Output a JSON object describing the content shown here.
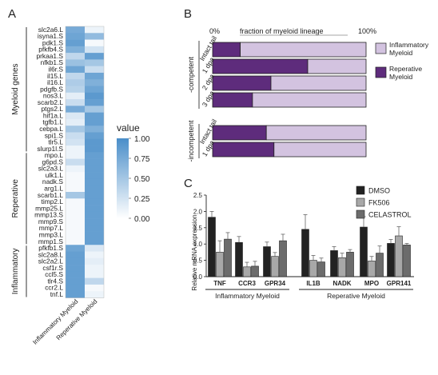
{
  "panels": {
    "a": "A",
    "b": "B",
    "c": "C"
  },
  "chart_data": [
    {
      "type": "heatmap",
      "panel": "A",
      "columns": [
        "Inflammatory Myeloid",
        "Reperative Myeloid"
      ],
      "rows": [
        "slc2a6.L",
        "isyna1.S",
        "pdk1.S",
        "pfkfb4.S",
        "prkaa1.S",
        "nfkb1.S",
        "il6r.S",
        "il15.L",
        "il16.L",
        "pdgfb.S",
        "nos3.L",
        "scarb2.L",
        "ptgs2.L",
        "hif1a.L",
        "tgfb1.L",
        "cebpa.L",
        "spi1.S",
        "tlr5.L",
        "slurp1l.S",
        "mpo.L",
        "g6pd.S",
        "slc2a3.L",
        "ulk1.L",
        "nadk.S",
        "arg1.L",
        "scarb1.L",
        "timp2.L",
        "mmp25.L",
        "mmp13.S",
        "mmp9.S",
        "mmp7.L",
        "mmp3.L",
        "mmp1.S",
        "pfkfb1.S",
        "slc2a8.L",
        "slc2a2.L",
        "csf1r.S",
        "ccl5.S",
        "tlr4.S",
        "ccr2.L",
        "tnf.L"
      ],
      "values": [
        [
          0.75,
          0.1
        ],
        [
          0.8,
          0.6
        ],
        [
          0.85,
          0.05
        ],
        [
          0.7,
          0.25
        ],
        [
          0.35,
          0.85
        ],
        [
          0.55,
          0.5
        ],
        [
          0.8,
          0.3
        ],
        [
          0.35,
          0.8
        ],
        [
          0.45,
          0.7
        ],
        [
          0.4,
          0.8
        ],
        [
          0.15,
          0.9
        ],
        [
          0.3,
          0.85
        ],
        [
          0.75,
          0.5
        ],
        [
          0.2,
          0.85
        ],
        [
          0.15,
          0.85
        ],
        [
          0.5,
          0.7
        ],
        [
          0.3,
          0.85
        ],
        [
          0.25,
          0.9
        ],
        [
          0.1,
          0.9
        ],
        [
          0.1,
          0.85
        ],
        [
          0.3,
          0.85
        ],
        [
          0.1,
          0.85
        ],
        [
          0.05,
          0.85
        ],
        [
          0.05,
          0.85
        ],
        [
          0.05,
          0.85
        ],
        [
          0.5,
          0.85
        ],
        [
          0.05,
          0.85
        ],
        [
          0.05,
          0.85
        ],
        [
          0.05,
          0.85
        ],
        [
          0.05,
          0.85
        ],
        [
          0.05,
          0.85
        ],
        [
          0.05,
          0.85
        ],
        [
          0.05,
          0.85
        ],
        [
          0.8,
          0.2
        ],
        [
          0.85,
          0.1
        ],
        [
          0.85,
          0.15
        ],
        [
          0.85,
          0.1
        ],
        [
          0.85,
          0.1
        ],
        [
          0.85,
          0.35
        ],
        [
          0.85,
          0.05
        ],
        [
          0.85,
          0.1
        ]
      ],
      "groups": [
        {
          "label": "Myeloid genes",
          "start": 0,
          "end": 18
        },
        {
          "label": "Reperative",
          "start": 19,
          "end": 32
        },
        {
          "label": "Inflammatory",
          "start": 33,
          "end": 40
        }
      ],
      "colorbar": {
        "title": "value",
        "ticks": [
          "1.00",
          "0.75",
          "0.50",
          "0.25",
          "0.00"
        ],
        "low_color": "#ffffff",
        "high_color": "#4a8ec9"
      }
    },
    {
      "type": "bar",
      "panel": "B",
      "orientation": "horizontal",
      "stacked": true,
      "title": "fraction of myeloid lineage",
      "axis_ticks": [
        "0%",
        "100%"
      ],
      "categories": [
        "Intact tail",
        "1 dpa",
        "2 dpa",
        "3 dpa",
        "Intact tail",
        "1 dpa"
      ],
      "category_groups": [
        {
          "label": "-competent",
          "start": 0,
          "end": 3
        },
        {
          "label": "-incompetent",
          "start": 4,
          "end": 5
        }
      ],
      "series": [
        {
          "name": "Reperative Myeloid",
          "color": "#5e2c7c",
          "values": [
            18,
            62,
            38,
            26,
            35,
            40
          ]
        },
        {
          "name": "Inflammatory Myeloid",
          "color": "#d3c3e0",
          "values": [
            82,
            38,
            62,
            74,
            65,
            60
          ]
        }
      ],
      "legend": {
        "placement": "right",
        "items": [
          "Inflammatory Myeloid",
          "Reperative Myeloid"
        ]
      },
      "xlim": [
        0,
        100
      ]
    },
    {
      "type": "bar",
      "panel": "C",
      "ylabel": "Relative mRNA expression",
      "ylim": [
        0,
        2.5
      ],
      "yticks": [
        "0.0",
        "0.5",
        "1.0",
        "1.5",
        "2.0",
        "2.5"
      ],
      "categories": [
        "TNF",
        "CCR3",
        "GPR34",
        "IL1B",
        "NADK",
        "MPO",
        "GPR141"
      ],
      "series": [
        {
          "name": "DMSO",
          "color": "#222222",
          "values": [
            1.82,
            1.05,
            0.92,
            1.45,
            0.8,
            1.52,
            1.02
          ],
          "errors": [
            0.18,
            0.18,
            0.14,
            0.45,
            0.12,
            0.32,
            0.12
          ]
        },
        {
          "name": "FK506",
          "color": "#a8a8a8",
          "values": [
            0.75,
            0.3,
            0.62,
            0.5,
            0.58,
            0.48,
            1.25
          ],
          "errors": [
            0.35,
            0.14,
            0.12,
            0.15,
            0.14,
            0.14,
            0.28
          ]
        },
        {
          "name": "CELASTROL",
          "color": "#6c6c6c",
          "values": [
            1.15,
            0.32,
            1.1,
            0.45,
            0.75,
            0.72,
            0.97
          ],
          "errors": [
            0.2,
            0.15,
            0.2,
            0.12,
            0.08,
            0.22,
            0.05
          ]
        }
      ],
      "category_groups": [
        {
          "label": "Inflammatory Myeloid",
          "start": 0,
          "end": 2
        },
        {
          "label": "Reperative Myeloid",
          "start": 3,
          "end": 6
        }
      ],
      "legend": {
        "placement": "top-right",
        "items": [
          "DMSO",
          "FK506",
          "CELASTROL"
        ]
      }
    }
  ]
}
